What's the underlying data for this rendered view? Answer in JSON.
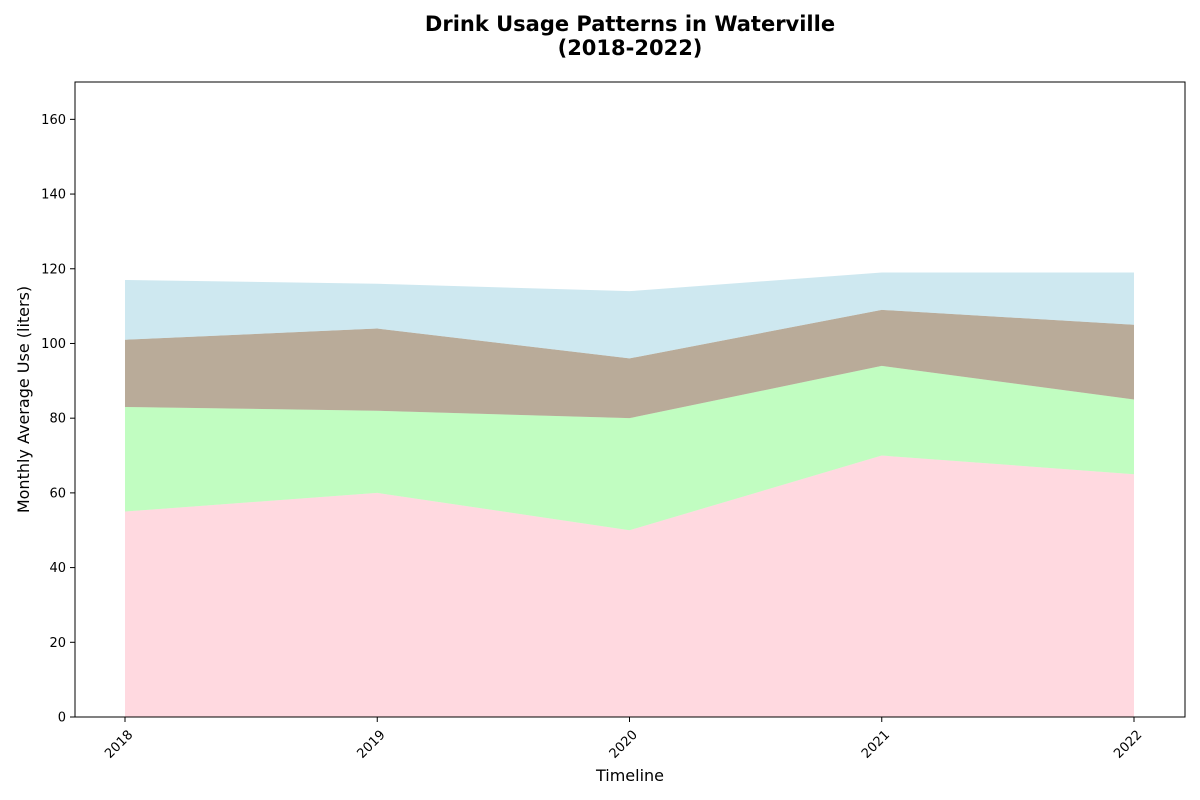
{
  "chart_data": {
    "type": "area",
    "stacked": true,
    "title_lines": [
      "Drink Usage Patterns in Waterville",
      "(2018-2022)"
    ],
    "xlabel": "Timeline",
    "ylabel": "Monthly Average Use (liters)",
    "x": [
      "2018",
      "2019",
      "2020",
      "2021",
      "2022"
    ],
    "ylim": [
      0,
      170
    ],
    "yticks": [
      0,
      20,
      40,
      60,
      80,
      100,
      120,
      140,
      160
    ],
    "grid": false,
    "legend": "none",
    "series": [
      {
        "color": "#ffc0cb",
        "values": [
          55,
          60,
          50,
          70,
          65
        ]
      },
      {
        "color": "#98fb98",
        "values": [
          28,
          22,
          30,
          24,
          20
        ]
      },
      {
        "color": "#8b7355",
        "values": [
          18,
          22,
          16,
          15,
          20
        ]
      },
      {
        "color": "#add8e6",
        "values": [
          16,
          12,
          18,
          10,
          14
        ]
      }
    ]
  }
}
